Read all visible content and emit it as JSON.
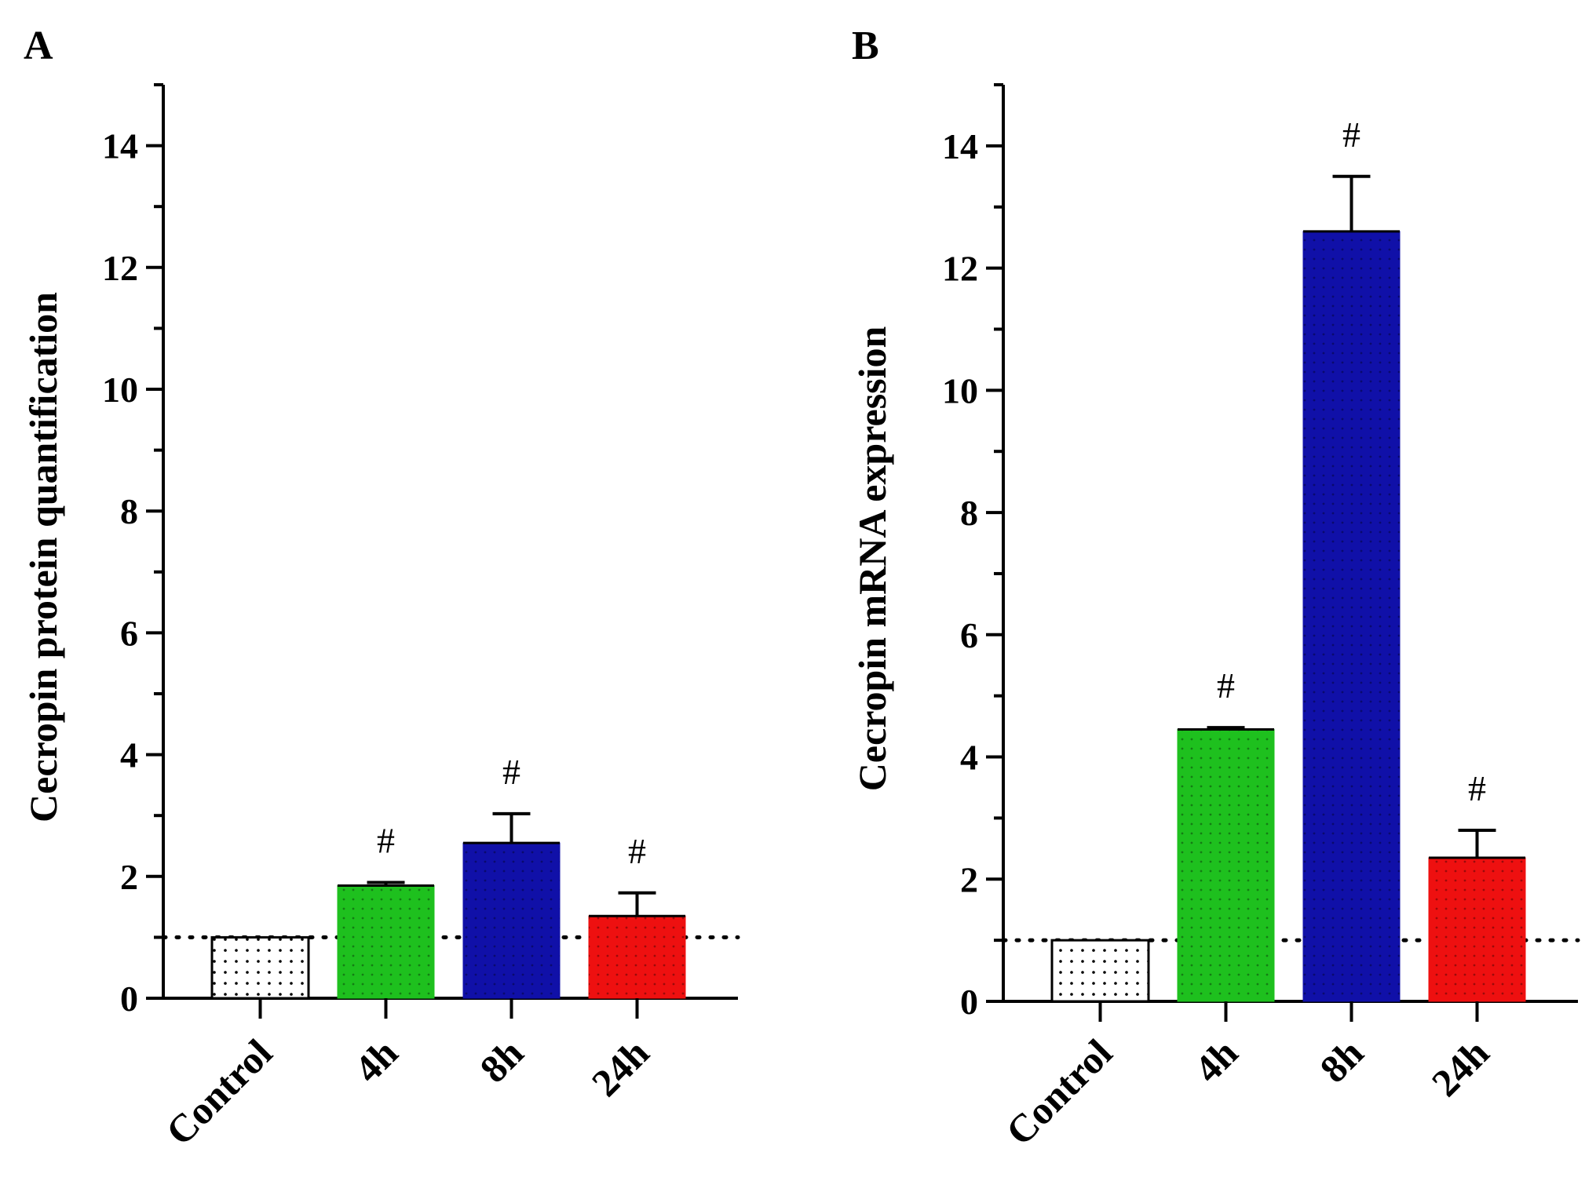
{
  "chart_data": [
    {
      "type": "bar",
      "panel": "A",
      "title": "",
      "xlabel": "",
      "ylabel": "Cecropin protein quantification",
      "ylim": [
        0,
        15
      ],
      "yticks": [
        "0",
        "2",
        "4",
        "6",
        "8",
        "10",
        "12",
        "14"
      ],
      "categories": [
        "Control",
        "4h",
        "8h",
        "24h"
      ],
      "values": [
        1.0,
        1.85,
        2.55,
        1.35
      ],
      "errors": [
        0,
        0.05,
        0.48,
        0.38
      ],
      "significance": [
        "",
        "#",
        "#",
        "#"
      ],
      "colors": [
        "#ffffff",
        "#1ec01e",
        "#1010a8",
        "#ee1010"
      ],
      "reference_line": 1.0,
      "grid": false
    },
    {
      "type": "bar",
      "panel": "B",
      "title": "",
      "xlabel": "",
      "ylabel": "Cecropin mRNA expression",
      "ylim": [
        0,
        15
      ],
      "yticks": [
        "0",
        "2",
        "4",
        "6",
        "8",
        "10",
        "12",
        "14"
      ],
      "categories": [
        "Control",
        "4h",
        "8h",
        "24h"
      ],
      "values": [
        1.0,
        4.45,
        12.6,
        2.35
      ],
      "errors": [
        0,
        0.03,
        0.9,
        0.45
      ],
      "significance": [
        "",
        "#",
        "#",
        "#"
      ],
      "colors": [
        "#ffffff",
        "#1ec01e",
        "#1010a8",
        "#ee1010"
      ],
      "reference_line": 1.0,
      "grid": false
    }
  ]
}
